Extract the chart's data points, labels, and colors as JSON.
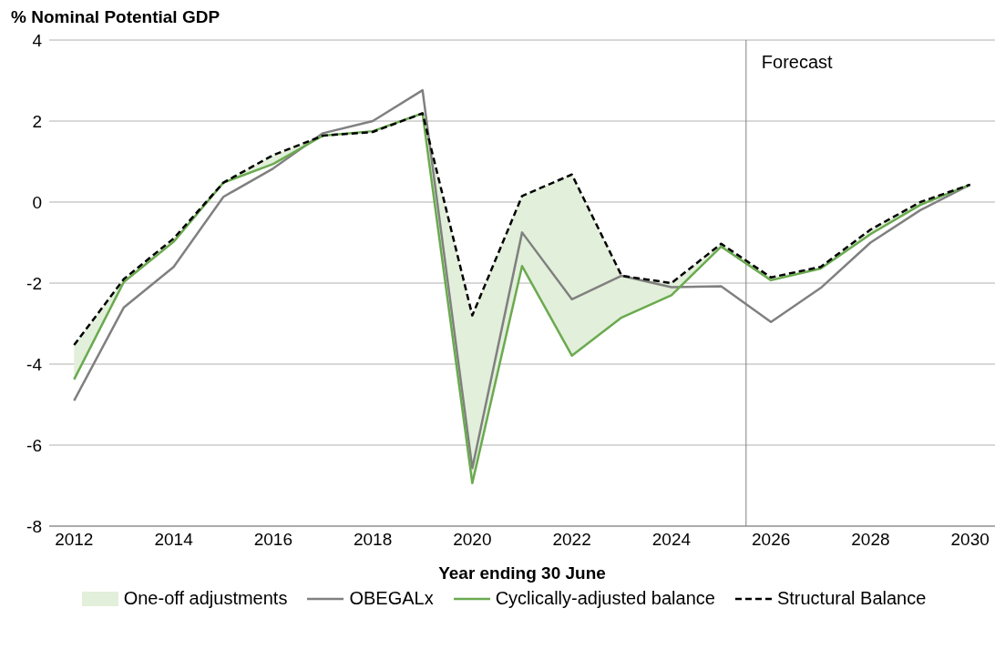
{
  "chart_data": {
    "type": "line",
    "ylabel": "% Nominal Potential GDP",
    "xlabel": "Year ending 30 June",
    "x": [
      2012,
      2013,
      2014,
      2015,
      2016,
      2017,
      2018,
      2019,
      2020,
      2021,
      2022,
      2023,
      2024,
      2025,
      2026,
      2027,
      2028,
      2029,
      2030
    ],
    "xlim": [
      2011.5,
      2030.5
    ],
    "xticks": [
      2012,
      2014,
      2016,
      2018,
      2020,
      2022,
      2024,
      2026,
      2028,
      2030
    ],
    "ylim": [
      -8,
      4
    ],
    "yticks": [
      -8,
      -6,
      -4,
      -2,
      0,
      2,
      4
    ],
    "grid": "y",
    "legend": "bottom",
    "annotations": [
      "One-off adjustments"
    ],
    "series": [
      {
        "name": "OBEGALx",
        "color": "#808080",
        "line_style": "solid",
        "values": [
          -4.9,
          -2.6,
          -1.6,
          0.13,
          0.83,
          1.7,
          2.0,
          2.76,
          -6.57,
          -0.75,
          -2.4,
          -1.82,
          -2.1,
          -2.08,
          -2.96,
          -2.12,
          -1.0,
          -0.2,
          0.43
        ]
      },
      {
        "name": "Cyclically-adjusted balance",
        "color": "#6aaa4f",
        "line_style": "solid",
        "values": [
          -4.38,
          -1.97,
          -0.98,
          0.48,
          0.94,
          1.64,
          1.75,
          2.19,
          -6.94,
          -1.58,
          -3.79,
          -2.85,
          -2.3,
          -1.1,
          -1.93,
          -1.64,
          -0.79,
          -0.07,
          0.43
        ]
      },
      {
        "name": "Structural Balance",
        "color": "#000000",
        "line_style": "dashed",
        "values": [
          -3.53,
          -1.9,
          -0.9,
          0.48,
          1.16,
          1.64,
          1.73,
          2.19,
          -2.8,
          0.15,
          0.68,
          -1.82,
          -2.0,
          -1.03,
          -1.86,
          -1.6,
          -0.68,
          0.0,
          0.43
        ],
        "lower": [
          -4.38,
          -1.97,
          -0.98,
          0.48,
          0.94,
          1.64,
          1.73,
          2.19,
          -6.94,
          -1.58,
          -3.79,
          -2.85,
          -2.3,
          -1.1,
          -1.93,
          -1.64,
          -0.79,
          -0.07,
          0.43
        ],
        "upper": [
          -3.53,
          -1.9,
          -0.9,
          0.48,
          1.16,
          1.64,
          1.73,
          2.19,
          -2.8,
          0.15,
          0.68,
          -1.82,
          -2.0,
          -1.03,
          -1.86,
          -1.6,
          -0.68,
          0.0,
          0.43
        ]
      }
    ],
    "ref_lines": [
      {
        "axis": "x",
        "value": 2025.5,
        "label": "Forecast",
        "color": "#808080"
      }
    ]
  }
}
